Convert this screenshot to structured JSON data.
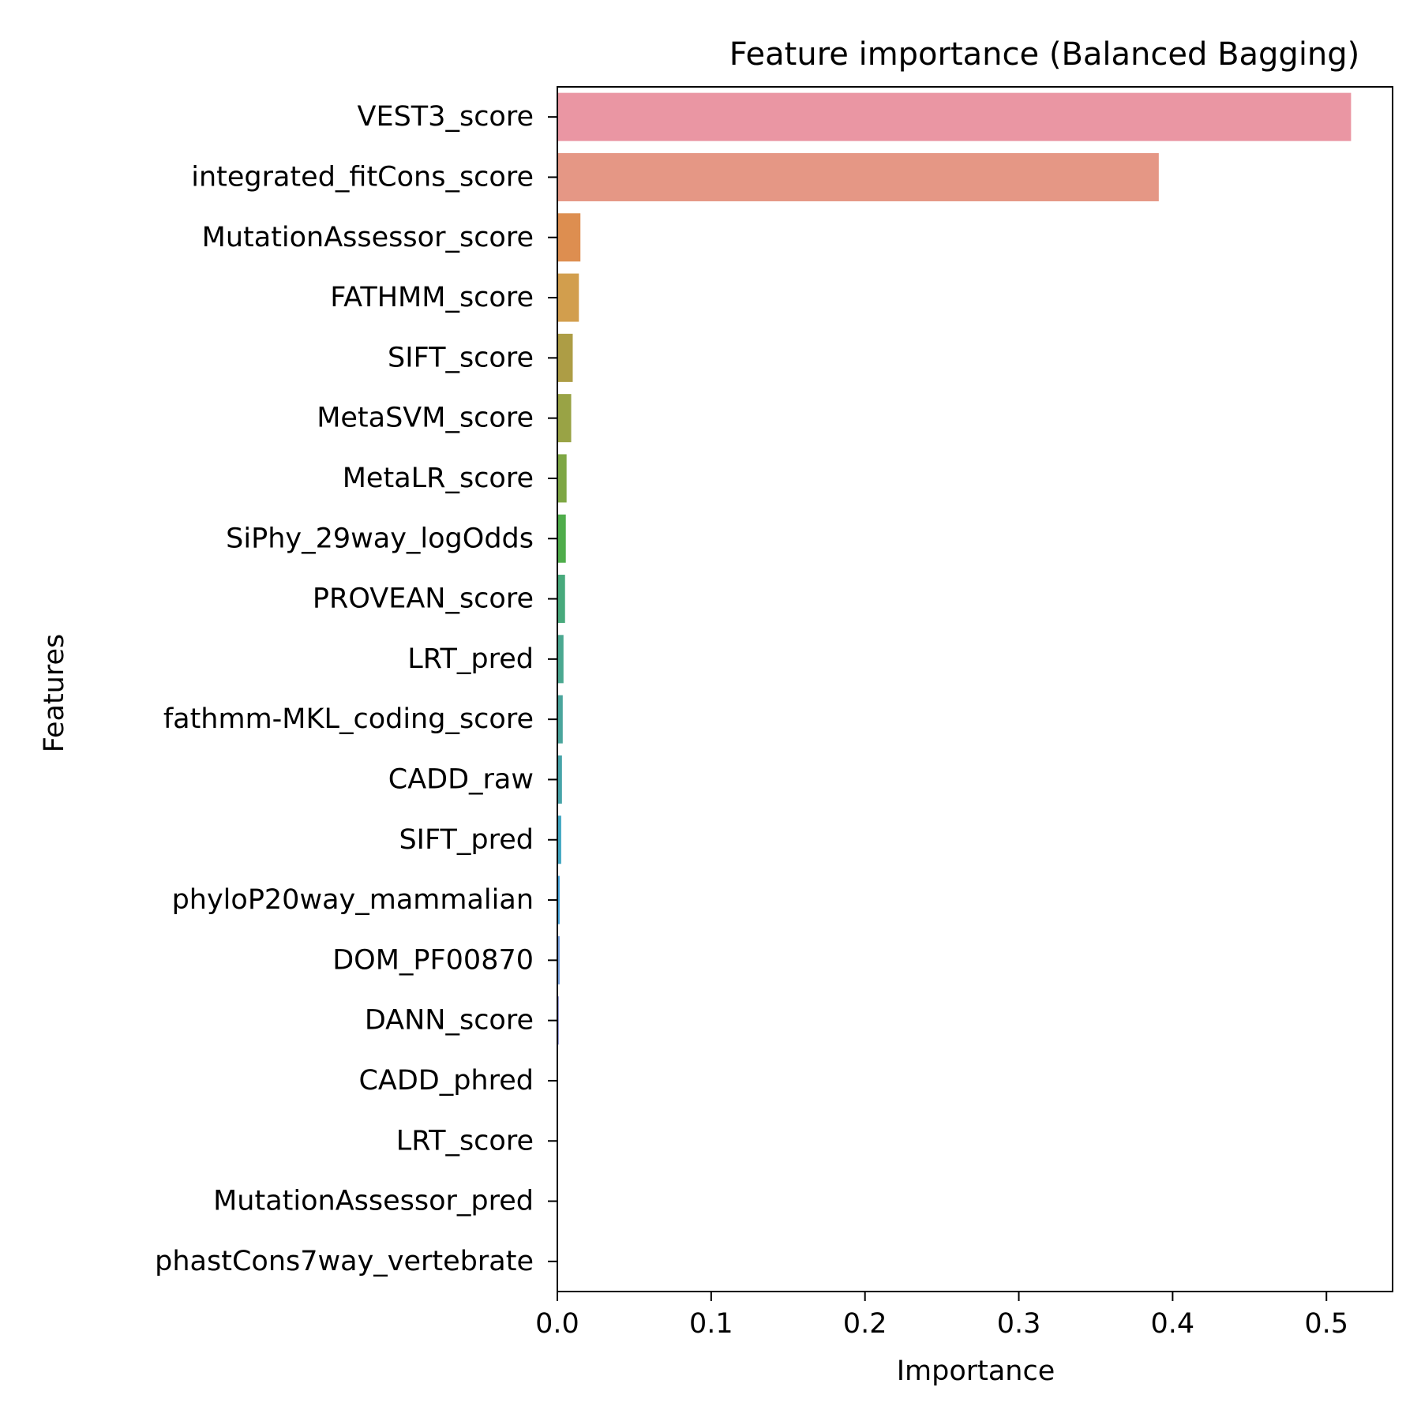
{
  "chart_data": {
    "type": "bar",
    "orientation": "horizontal",
    "title": "Feature importance (Balanced Bagging)",
    "xlabel": "Importance",
    "ylabel": "Features",
    "xlim": [
      0,
      0.543
    ],
    "xticks": [
      "0.0",
      "0.1",
      "0.2",
      "0.3",
      "0.4",
      "0.5"
    ],
    "grid": false,
    "categories": [
      "VEST3_score",
      "integrated_fitCons_score",
      "MutationAssessor_score",
      "FATHMM_score",
      "SIFT_score",
      "MetaSVM_score",
      "MetaLR_score",
      "SiPhy_29way_logOdds",
      "PROVEAN_score",
      "LRT_pred",
      "fathmm-MKL_coding_score",
      "CADD_raw",
      "SIFT_pred",
      "phyloP20way_mammalian",
      "DOM_PF00870",
      "DANN_score",
      "CADD_phred",
      "LRT_score",
      "MutationAssessor_pred",
      "phastCons7way_vertebrate"
    ],
    "values": [
      0.516,
      0.391,
      0.015,
      0.014,
      0.01,
      0.009,
      0.006,
      0.0055,
      0.005,
      0.004,
      0.0035,
      0.003,
      0.0025,
      0.0015,
      0.0015,
      0.001,
      0.0,
      0.0,
      0.0,
      0.0
    ],
    "colors": [
      "#ea96a3",
      "#e59785",
      "#dd8e50",
      "#d29e4d",
      "#ad9d45",
      "#99a345",
      "#7ea744",
      "#4fad4b",
      "#48aa7c",
      "#4aa890",
      "#4aa59c",
      "#47a4a9",
      "#3ea5c0",
      "#40a0d8",
      "#6f9ad9",
      "#959ad9",
      "#b19bd9",
      "#cf90d8",
      "#e08ad0",
      "#e28cb5"
    ]
  }
}
